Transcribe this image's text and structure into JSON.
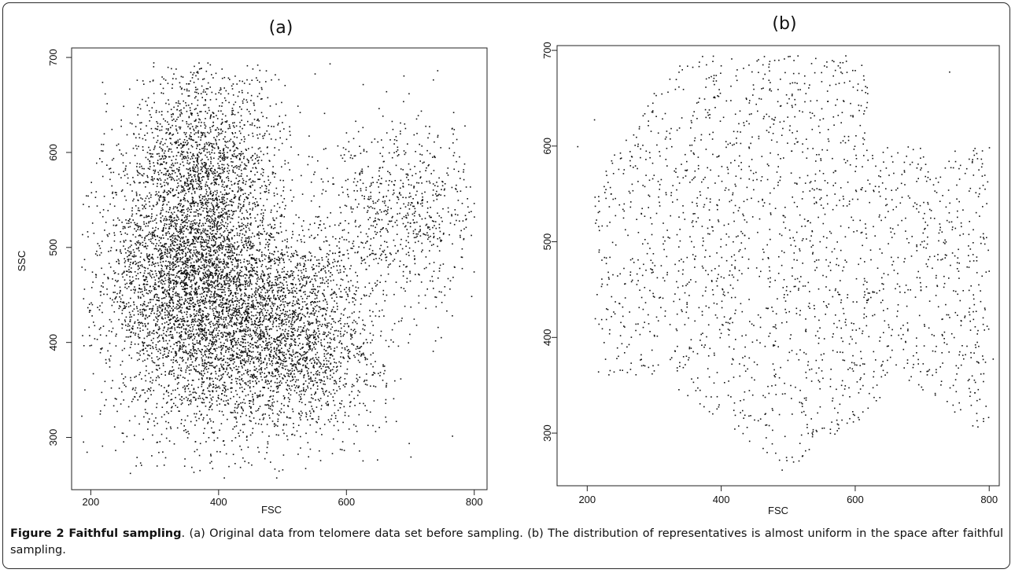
{
  "chart_data": [
    {
      "type": "scatter",
      "title": "(a)",
      "xlabel": "FSC",
      "ylabel": "SSC",
      "xlim": [
        170,
        820
      ],
      "ylim": [
        245,
        710
      ],
      "xticks": [
        200,
        400,
        600,
        800
      ],
      "yticks": [
        300,
        400,
        500,
        600,
        700
      ],
      "grid": false,
      "legend": "none",
      "point_color": "#111111",
      "approx_point_count": 9000,
      "clusters": [
        {
          "x_center": 360,
          "y_center": 470,
          "x_spread": 70,
          "y_spread": 75,
          "weight": 0.5
        },
        {
          "x_center": 500,
          "y_center": 410,
          "x_spread": 75,
          "y_spread": 55,
          "weight": 0.3
        },
        {
          "x_center": 380,
          "y_center": 600,
          "x_spread": 60,
          "y_spread": 55,
          "weight": 0.12
        },
        {
          "x_center": 690,
          "y_center": 540,
          "x_spread": 65,
          "y_spread": 45,
          "weight": 0.08
        }
      ],
      "outliers": [
        [
          408,
          258
        ],
        [
          490,
          258
        ],
        [
          735,
          677
        ],
        [
          700,
          280
        ],
        [
          765,
          302
        ],
        [
          185,
          323
        ],
        [
          795,
          449
        ]
      ]
    },
    {
      "type": "scatter",
      "title": "(b)",
      "xlabel": "FSC",
      "ylabel": "",
      "xlim": [
        155,
        815
      ],
      "ylim": [
        245,
        705
      ],
      "xticks": [
        200,
        400,
        600,
        800
      ],
      "yticks": [
        300,
        400,
        500,
        600,
        700
      ],
      "grid": false,
      "legend": "none",
      "point_color": "#111111",
      "approx_point_count": 2000,
      "extent": {
        "x": [
          210,
          800
        ],
        "y": [
          262,
          695
        ]
      },
      "outliers": [
        [
          185,
          600
        ],
        [
          210,
          628
        ],
        [
          490,
          262
        ],
        [
          740,
          678
        ],
        [
          805,
          378
        ],
        [
          795,
          505
        ]
      ]
    }
  ],
  "caption": {
    "label": "Figure 2 Faithful sampling",
    "text": ". (a) Original data from telomere data set before sampling. (b) The distribution of representatives is almost uniform in the space after faithful sampling."
  }
}
